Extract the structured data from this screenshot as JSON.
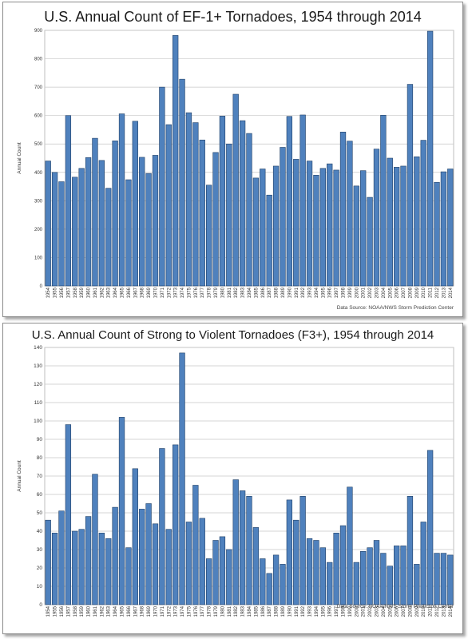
{
  "chart_data": [
    {
      "type": "bar",
      "title": "U.S. Annual Count of EF-1+ Tornadoes, 1954 through 2014",
      "xlabel": "",
      "ylabel": "Annual Count",
      "ylim": [
        0,
        900
      ],
      "yticks": [
        0,
        100,
        200,
        300,
        400,
        500,
        600,
        700,
        800,
        900
      ],
      "grid": true,
      "source": "Data Source: NOAA/NWS Storm Prediction Center",
      "bar_color": "#4f81bd",
      "categories": [
        "1954",
        "1955",
        "1956",
        "1957",
        "1958",
        "1959",
        "1960",
        "1961",
        "1962",
        "1963",
        "1964",
        "1965",
        "1966",
        "1967",
        "1968",
        "1969",
        "1970",
        "1971",
        "1972",
        "1973",
        "1974",
        "1975",
        "1976",
        "1977",
        "1978",
        "1979",
        "1980",
        "1981",
        "1982",
        "1983",
        "1984",
        "1985",
        "1986",
        "1987",
        "1988",
        "1989",
        "1990",
        "1991",
        "1992",
        "1993",
        "1994",
        "1995",
        "1996",
        "1997",
        "1998",
        "1999",
        "2000",
        "2001",
        "2002",
        "2003",
        "2004",
        "2005",
        "2006",
        "2007",
        "2008",
        "2009",
        "2010",
        "2011",
        "2012",
        "2013",
        "2014"
      ],
      "values": [
        440,
        400,
        367,
        600,
        383,
        414,
        452,
        520,
        442,
        344,
        511,
        606,
        374,
        580,
        453,
        396,
        460,
        700,
        568,
        882,
        728,
        610,
        575,
        514,
        355,
        470,
        598,
        500,
        675,
        582,
        537,
        380,
        412,
        320,
        422,
        488,
        597,
        446,
        602,
        440,
        390,
        414,
        430,
        408,
        542,
        510,
        352,
        406,
        312,
        482,
        601,
        450,
        418,
        422,
        710,
        455,
        513,
        897,
        365,
        402,
        412
      ]
    },
    {
      "type": "bar",
      "title": "U.S. Annual Count of Strong to Violent Tornadoes (F3+), 1954 through 2014",
      "xlabel": "",
      "ylabel": "Annual Count",
      "ylim": [
        0,
        140
      ],
      "yticks": [
        0,
        10,
        20,
        30,
        40,
        50,
        60,
        70,
        80,
        90,
        100,
        110,
        120,
        130,
        140
      ],
      "grid": true,
      "source": "Data Source: NOAA/NWS Storm Prediction Center",
      "bar_color": "#4f81bd",
      "categories": [
        "1954",
        "1955",
        "1956",
        "1957",
        "1958",
        "1959",
        "1960",
        "1961",
        "1962",
        "1963",
        "1964",
        "1965",
        "1966",
        "1967",
        "1968",
        "1969",
        "1970",
        "1971",
        "1972",
        "1973",
        "1974",
        "1975",
        "1976",
        "1977",
        "1978",
        "1979",
        "1980",
        "1981",
        "1982",
        "1983",
        "1984",
        "1985",
        "1986",
        "1987",
        "1988",
        "1989",
        "1990",
        "1991",
        "1992",
        "1993",
        "1994",
        "1995",
        "1996",
        "1997",
        "1998",
        "1999",
        "2000",
        "2001",
        "2002",
        "2003",
        "2004",
        "2005",
        "2006",
        "2007",
        "2008",
        "2009",
        "2010",
        "2011",
        "2012",
        "2013",
        "2014"
      ],
      "values": [
        46,
        39,
        51,
        98,
        40,
        41,
        48,
        71,
        39,
        36,
        53,
        102,
        31,
        74,
        52,
        55,
        44,
        85,
        41,
        87,
        137,
        45,
        65,
        47,
        25,
        35,
        37,
        30,
        68,
        62,
        59,
        42,
        25,
        17,
        27,
        22,
        57,
        46,
        59,
        36,
        35,
        31,
        23,
        39,
        43,
        64,
        23,
        29,
        31,
        35,
        28,
        21,
        32,
        32,
        59,
        22,
        45,
        84,
        28,
        28,
        27
      ]
    }
  ]
}
